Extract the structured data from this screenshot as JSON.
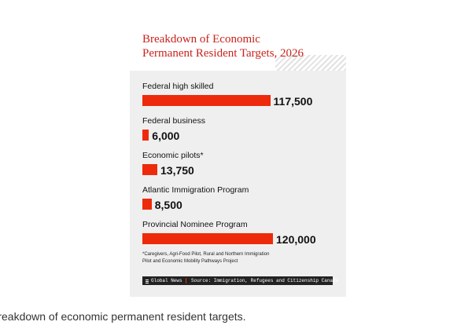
{
  "chart_data": {
    "type": "bar",
    "orientation": "horizontal",
    "title": [
      "Breakdown of Economic",
      "Permanent Resident Targets, 2026"
    ],
    "categories": [
      "Federal high skilled",
      "Federal business",
      "Economic pilots*",
      "Atlantic Immigration Program",
      "Provincial Nominee Program"
    ],
    "values": [
      117500,
      6000,
      13750,
      8500,
      120000
    ],
    "value_labels": [
      "117,500",
      "6,000",
      "13,750",
      "8,500",
      "120,000"
    ],
    "color": "#ee2a0c",
    "xlim": [
      0,
      120000
    ],
    "footnote": [
      "*Caregivers, Agri-Food Pilot, Rural and Northern Immigration",
      "Pilot and Economic Mobility Pathways Project"
    ],
    "brand": "Global News",
    "source": "Source: Immigration, Refugees and Citizenship Canada"
  },
  "caption": "Breakdown of economic permanent resident targets."
}
